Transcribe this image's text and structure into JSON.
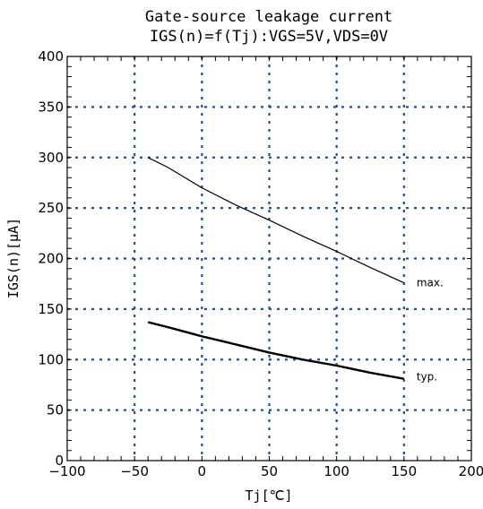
{
  "chart_data": {
    "type": "line",
    "title": "Gate-source leakage current",
    "subtitle": "IGS(n)=f(Tj):VGS=5V,VDS=0V",
    "xlabel": "Tj[℃]",
    "ylabel": "IGS(n)[μA]",
    "xlim": [
      -100,
      200
    ],
    "ylim": [
      0,
      400
    ],
    "xticks": [
      -100,
      -50,
      0,
      50,
      100,
      150,
      200
    ],
    "yticks": [
      0,
      50,
      100,
      150,
      200,
      250,
      300,
      350,
      400
    ],
    "grid": true,
    "grid_color": "#1f4fa0",
    "series": [
      {
        "name": "max.",
        "x": [
          -40,
          -25,
          0,
          25,
          50,
          75,
          100,
          125,
          150
        ],
        "values": [
          300,
          290,
          270,
          253,
          238,
          222,
          207,
          191,
          176
        ]
      },
      {
        "name": "typ.",
        "x": [
          -40,
          -25,
          0,
          25,
          50,
          75,
          100,
          125,
          150
        ],
        "values": [
          137,
          132,
          123,
          115,
          107,
          100,
          94,
          87,
          81
        ]
      }
    ]
  }
}
